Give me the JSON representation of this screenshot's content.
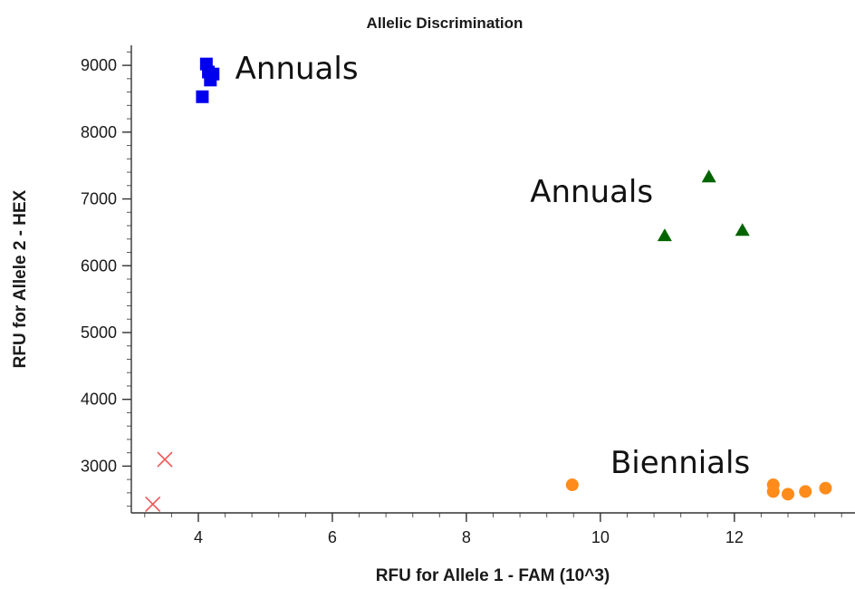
{
  "chart_data": {
    "type": "scatter",
    "title": "Allelic Discrimination",
    "xlabel": "RFU for Allele 1 - FAM (10^3)",
    "ylabel": "RFU for Allele 2 - HEX",
    "xlim": [
      3.0,
      13.8
    ],
    "ylim": [
      2300,
      9300
    ],
    "xticks": [
      4,
      6,
      8,
      10,
      12
    ],
    "yticks": [
      3000,
      4000,
      5000,
      6000,
      7000,
      8000,
      9000
    ],
    "series": [
      {
        "marker": "square",
        "color": "#0000ee",
        "points": [
          {
            "x": 4.12,
            "y": 9020
          },
          {
            "x": 4.22,
            "y": 8870
          },
          {
            "x": 4.15,
            "y": 8900
          },
          {
            "x": 4.18,
            "y": 8780
          },
          {
            "x": 4.06,
            "y": 8530
          }
        ]
      },
      {
        "marker": "triangle",
        "color": "#006400",
        "points": [
          {
            "x": 11.62,
            "y": 7330
          },
          {
            "x": 10.96,
            "y": 6450
          },
          {
            "x": 12.12,
            "y": 6530
          }
        ]
      },
      {
        "marker": "circle",
        "color": "#ff8c1a",
        "points": [
          {
            "x": 9.58,
            "y": 2720
          },
          {
            "x": 12.58,
            "y": 2720
          },
          {
            "x": 12.58,
            "y": 2620
          },
          {
            "x": 12.8,
            "y": 2580
          },
          {
            "x": 13.06,
            "y": 2620
          },
          {
            "x": 13.36,
            "y": 2670
          }
        ]
      },
      {
        "marker": "x",
        "color": "#ee5555",
        "points": [
          {
            "x": 3.5,
            "y": 3100
          },
          {
            "x": 3.32,
            "y": 2430
          }
        ]
      }
    ],
    "annotations": [
      {
        "text": "Annuals",
        "x": 4.55,
        "y": 8800
      },
      {
        "text": "Annuals",
        "x": 8.95,
        "y": 6950
      },
      {
        "text": "Biennials",
        "x": 10.15,
        "y": 2900
      }
    ]
  }
}
